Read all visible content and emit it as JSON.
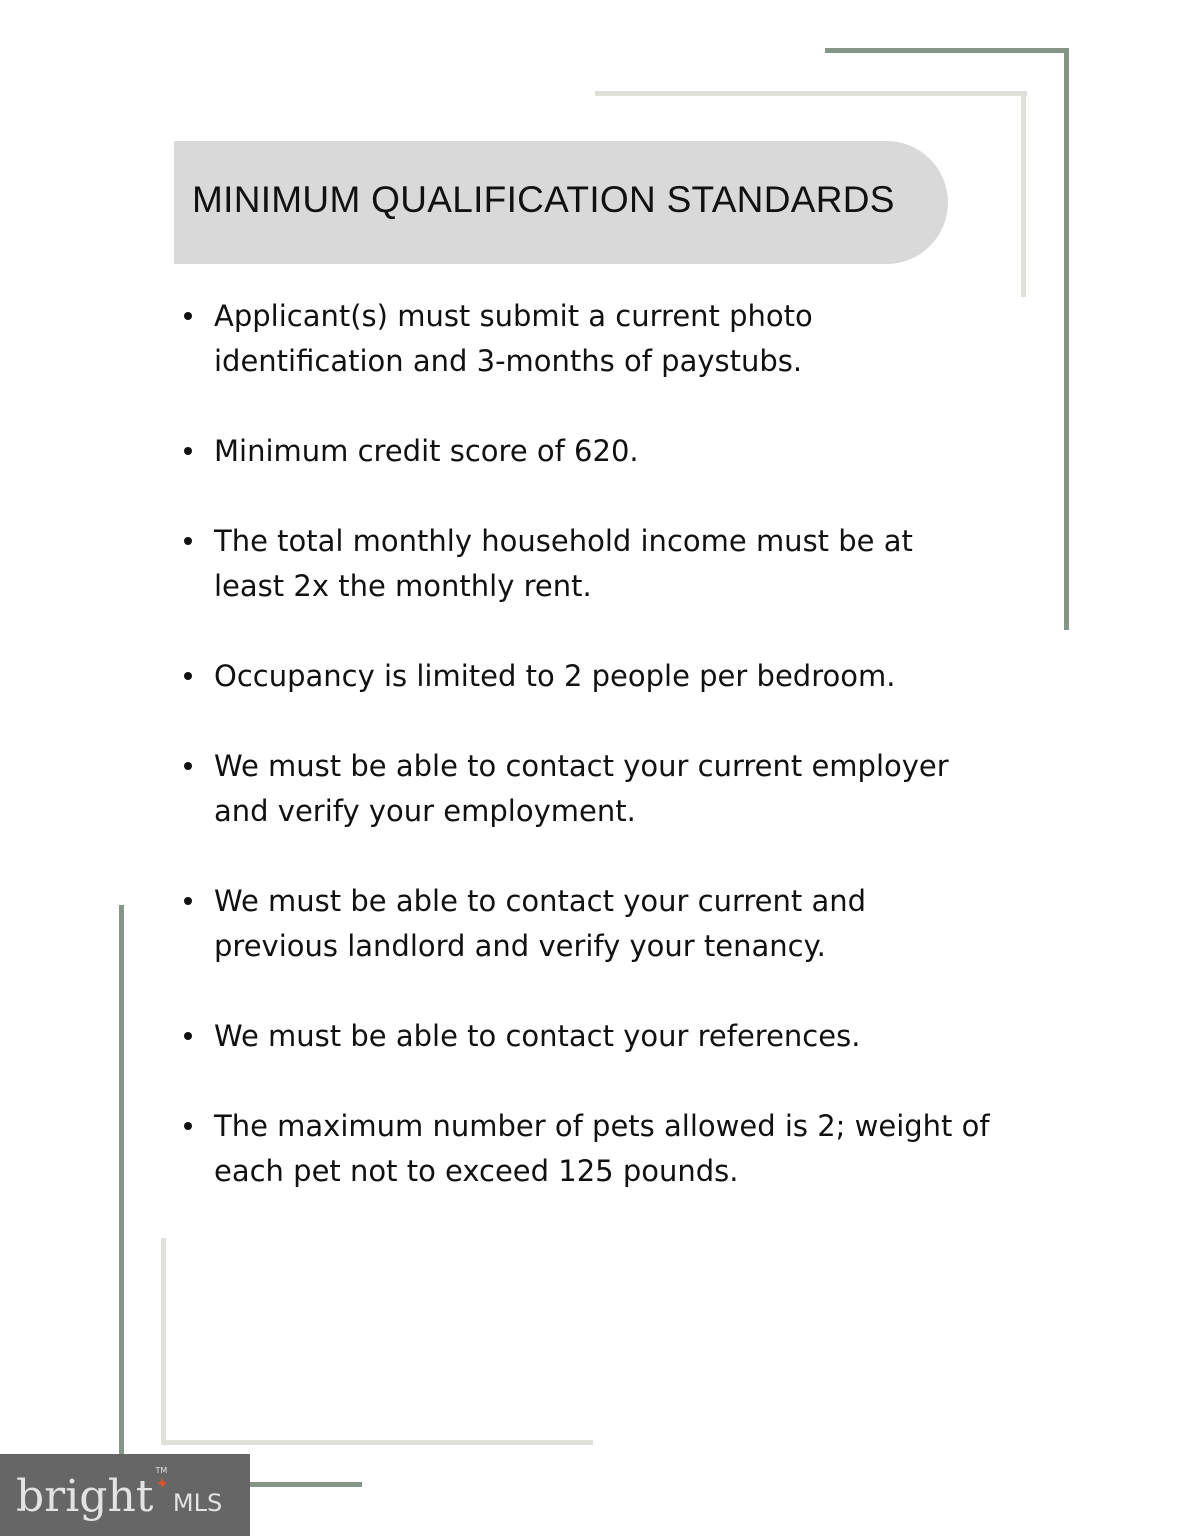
{
  "title": "MINIMUM QUALIFICATION STANDARDS",
  "items": [
    "Applicant(s) must submit a current photo identification and 3-months of paystubs.",
    "Minimum credit score of 620.",
    "The total monthly household income must be at least 2x the monthly rent.",
    "Occupancy is limited to 2 people per bedroom.",
    "We must be able to contact your current employer and verify your employment.",
    "We must be able to contact your current and previous landlord and verify your tenancy.",
    "We must be able to contact your references.",
    "The maximum number of pets allowed is 2; weight of each pet not to exceed 125 pounds."
  ],
  "logo": {
    "brand": "bright",
    "suffix": "MLS",
    "trademark": "TM"
  },
  "colors": {
    "accent_dark": "#859587",
    "accent_light": "#dde1da",
    "header_bg": "#d9d9d9",
    "logo_bg": "#666666",
    "logo_star": "#d8532e"
  }
}
